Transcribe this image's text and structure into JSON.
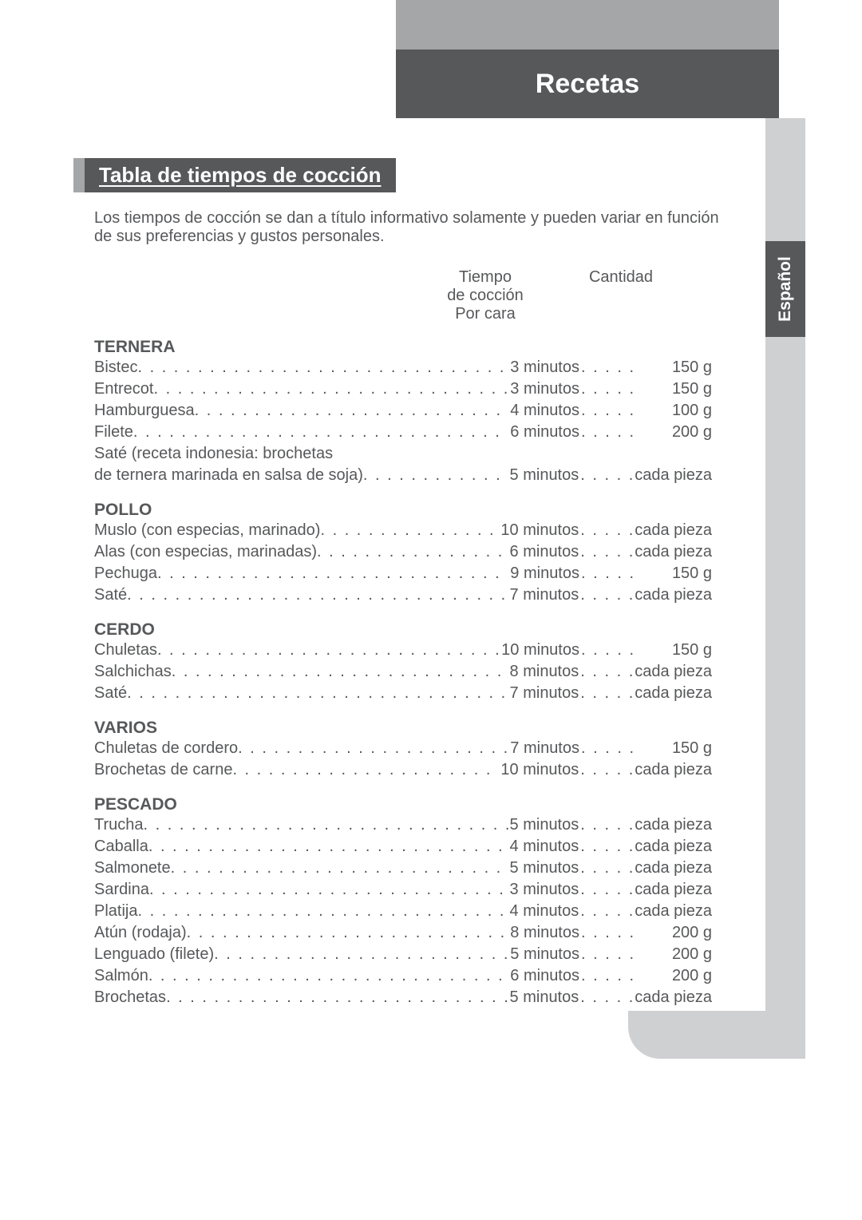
{
  "header": {
    "title": "Recetas"
  },
  "sectionTab": {
    "title": "Tabla de tiempos de cocción"
  },
  "sideTab": {
    "label": "Español"
  },
  "intro": "Los tiempos de cocción se dan a título informativo solamente y pueden variar en función de sus preferencias y gustos personales.",
  "columns": {
    "time": "Tiempo\nde cocción\nPor cara",
    "qty": "Cantidad"
  },
  "categories": [
    {
      "title": "TERNERA",
      "rows": [
        {
          "name": "Bistec",
          "time": "3 minutos",
          "qty": "150 g"
        },
        {
          "name": "Entrecot",
          "time": "3 minutos",
          "qty": "150 g"
        },
        {
          "name": "Hamburguesa",
          "time": "4 minutos",
          "qty": "100 g"
        },
        {
          "name": "Filete",
          "time": "6 minutos",
          "qty": "200 g"
        },
        {
          "name": "Saté (receta indonesia: brochetas",
          "name2": "de ternera marinada en salsa de soja)",
          "time": "5 minutos",
          "qty": "cada pieza"
        }
      ]
    },
    {
      "title": "POLLO",
      "rows": [
        {
          "name": "Muslo (con especias, marinado)",
          "time": "10 minutos",
          "qty": "cada pieza"
        },
        {
          "name": "Alas (con especias, marinadas)",
          "time": "6 minutos",
          "qty": "cada pieza"
        },
        {
          "name": "Pechuga",
          "time": "9 minutos",
          "qty": "150 g"
        },
        {
          "name": "Saté",
          "time": "7 minutos",
          "qty": "cada pieza"
        }
      ]
    },
    {
      "title": "CERDO",
      "rows": [
        {
          "name": "Chuletas",
          "time": "10 minutos",
          "qty": "150 g"
        },
        {
          "name": "Salchichas",
          "time": "8 minutos",
          "qty": "cada pieza"
        },
        {
          "name": "Saté",
          "time": "7 minutos",
          "qty": "cada pieza"
        }
      ]
    },
    {
      "title": "VARIOS",
      "rows": [
        {
          "name": "Chuletas de cordero",
          "time": "7 minutos",
          "qty": "150 g"
        },
        {
          "name": "Brochetas de carne",
          "time": "10 minutos",
          "qty": "cada pieza"
        }
      ]
    },
    {
      "title": "PESCADO",
      "rows": [
        {
          "name": "Trucha",
          "time": "5 minutos",
          "qty": "cada pieza"
        },
        {
          "name": "Caballa",
          "time": "4 minutos",
          "qty": "cada pieza"
        },
        {
          "name": "Salmonete",
          "time": "5 minutos",
          "qty": "cada pieza"
        },
        {
          "name": "Sardina",
          "time": "3 minutos",
          "qty": "cada pieza"
        },
        {
          "name": "Platija",
          "time": "4 minutos",
          "qty": "cada pieza"
        },
        {
          "name": "Atún (rodaja)",
          "time": "8 minutos",
          "qty": "200 g"
        },
        {
          "name": "Lenguado (filete)",
          "time": "5 minutos",
          "qty": "200 g"
        },
        {
          "name": "Salmón",
          "time": "6 minutos",
          "qty": "200 g"
        },
        {
          "name": "Brochetas",
          "time": "5 minutos",
          "qty": "cada pieza"
        }
      ]
    }
  ]
}
